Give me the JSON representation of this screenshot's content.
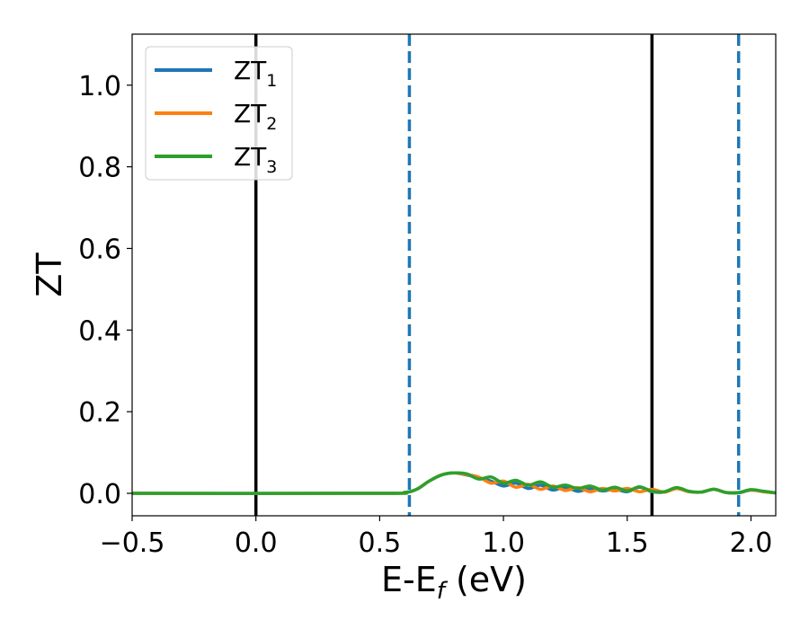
{
  "chart_data": {
    "type": "line",
    "title": "",
    "xlabel": "E-E",
    "xlabel_sub": "f",
    "xlabel_unit": " (eV)",
    "ylabel": "ZT",
    "xlim": [
      -0.5,
      2.1
    ],
    "ylim": [
      -0.055,
      1.125
    ],
    "xticks": [
      -0.5,
      0.0,
      0.5,
      1.0,
      1.5,
      2.0
    ],
    "xtick_labels": [
      "−0.5",
      "0.0",
      "0.5",
      "1.0",
      "1.5",
      "2.0"
    ],
    "yticks": [
      0.0,
      0.2,
      0.4,
      0.6,
      0.8,
      1.0
    ],
    "ytick_labels": [
      "0.0",
      "0.2",
      "0.4",
      "0.6",
      "0.8",
      "1.0"
    ],
    "grid": false,
    "legend_position": "top-left",
    "vlines": [
      {
        "x": 0.0,
        "style": "solid",
        "color": "#000000"
      },
      {
        "x": 1.6,
        "style": "solid",
        "color": "#000000"
      },
      {
        "x": 0.62,
        "style": "dashed",
        "color": "#1f77b4"
      },
      {
        "x": 1.95,
        "style": "dashed",
        "color": "#1f77b4"
      }
    ],
    "series": [
      {
        "name": "ZT",
        "sub": "1",
        "color": "#1f77b4",
        "x": [
          -0.5,
          0.5,
          0.6,
          0.65,
          0.7,
          0.75,
          0.8,
          0.85,
          0.9,
          0.95,
          1.0,
          1.05,
          1.1,
          1.15,
          1.2,
          1.25,
          1.3,
          1.35,
          1.4,
          1.45,
          1.5,
          1.55,
          1.6,
          1.65,
          1.7,
          1.75,
          1.8,
          1.85,
          1.9,
          1.95,
          2.0,
          2.05,
          2.1
        ],
        "y": [
          0.0,
          0.0,
          0.002,
          0.01,
          0.03,
          0.045,
          0.05,
          0.045,
          0.038,
          0.03,
          0.018,
          0.025,
          0.012,
          0.02,
          0.008,
          0.015,
          0.005,
          0.012,
          0.006,
          0.01,
          0.004,
          0.015,
          0.004,
          0.003,
          0.012,
          0.004,
          0.003,
          0.01,
          0.002,
          0.001,
          0.008,
          0.005,
          0.001
        ]
      },
      {
        "name": "ZT",
        "sub": "2",
        "color": "#ff7f0e",
        "x": [
          -0.5,
          0.5,
          0.6,
          0.65,
          0.7,
          0.75,
          0.8,
          0.85,
          0.9,
          0.95,
          1.0,
          1.05,
          1.1,
          1.15,
          1.2,
          1.25,
          1.3,
          1.35,
          1.4,
          1.45,
          1.5,
          1.55,
          1.6,
          1.65,
          1.7,
          1.75,
          1.8,
          1.85,
          1.9,
          1.95,
          2.0,
          2.05,
          2.1
        ],
        "y": [
          0.0,
          0.0,
          0.002,
          0.01,
          0.03,
          0.045,
          0.05,
          0.046,
          0.04,
          0.025,
          0.03,
          0.015,
          0.022,
          0.01,
          0.018,
          0.007,
          0.014,
          0.004,
          0.012,
          0.006,
          0.012,
          0.004,
          0.01,
          0.003,
          0.012,
          0.004,
          0.003,
          0.01,
          0.002,
          0.002,
          0.008,
          0.004,
          0.001
        ]
      },
      {
        "name": "ZT",
        "sub": "3",
        "color": "#2ca02c",
        "x": [
          -0.5,
          0.5,
          0.6,
          0.65,
          0.7,
          0.75,
          0.8,
          0.85,
          0.9,
          0.95,
          1.0,
          1.05,
          1.1,
          1.15,
          1.2,
          1.25,
          1.3,
          1.35,
          1.4,
          1.45,
          1.5,
          1.55,
          1.6,
          1.65,
          1.7,
          1.75,
          1.8,
          1.85,
          1.9,
          1.95,
          2.0,
          2.05,
          2.1
        ],
        "y": [
          0.0,
          0.0,
          0.002,
          0.01,
          0.03,
          0.045,
          0.05,
          0.048,
          0.035,
          0.04,
          0.025,
          0.032,
          0.02,
          0.028,
          0.015,
          0.02,
          0.012,
          0.018,
          0.008,
          0.015,
          0.006,
          0.016,
          0.005,
          0.004,
          0.014,
          0.005,
          0.003,
          0.01,
          0.002,
          0.002,
          0.009,
          0.005,
          0.001
        ]
      }
    ]
  }
}
